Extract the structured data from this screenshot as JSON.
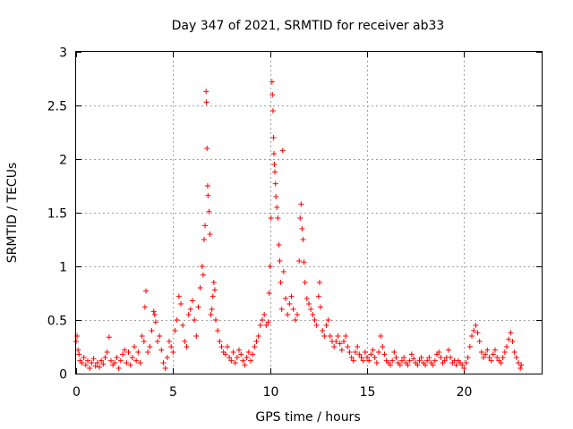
{
  "chart_data": {
    "type": "scatter",
    "title": "Day 347 of 2021, SRMTID for receiver ab33",
    "xlabel": "GPS time / hours",
    "ylabel": "SRMTID / TECUs",
    "xlim": [
      0,
      24
    ],
    "ylim": [
      0,
      3
    ],
    "xticks": [
      0,
      5,
      10,
      15,
      20
    ],
    "yticks": [
      0,
      0.5,
      1,
      1.5,
      2,
      2.5,
      3
    ],
    "xtick_labels": [
      "0",
      "5",
      "10",
      "15",
      "20"
    ],
    "ytick_labels": [
      "0",
      "0.5",
      "1",
      "1.5",
      "2",
      "2.5",
      "3"
    ],
    "grid": true,
    "marker": "plus",
    "series": [
      {
        "name": "SRMTID",
        "color": "#ff0000",
        "points": [
          [
            0.0,
            0.3
          ],
          [
            0.05,
            0.35
          ],
          [
            0.1,
            0.22
          ],
          [
            0.15,
            0.18
          ],
          [
            0.2,
            0.12
          ],
          [
            0.3,
            0.1
          ],
          [
            0.4,
            0.15
          ],
          [
            0.5,
            0.08
          ],
          [
            0.6,
            0.12
          ],
          [
            0.7,
            0.05
          ],
          [
            0.8,
            0.1
          ],
          [
            0.9,
            0.14
          ],
          [
            1.0,
            0.07
          ],
          [
            1.1,
            0.1
          ],
          [
            1.2,
            0.06
          ],
          [
            1.3,
            0.12
          ],
          [
            1.4,
            0.09
          ],
          [
            1.5,
            0.15
          ],
          [
            1.6,
            0.2
          ],
          [
            1.7,
            0.34
          ],
          [
            1.8,
            0.12
          ],
          [
            1.9,
            0.08
          ],
          [
            2.0,
            0.1
          ],
          [
            2.1,
            0.15
          ],
          [
            2.2,
            0.05
          ],
          [
            2.3,
            0.12
          ],
          [
            2.4,
            0.18
          ],
          [
            2.5,
            0.22
          ],
          [
            2.6,
            0.1
          ],
          [
            2.7,
            0.2
          ],
          [
            2.8,
            0.08
          ],
          [
            2.9,
            0.15
          ],
          [
            3.0,
            0.25
          ],
          [
            3.1,
            0.12
          ],
          [
            3.2,
            0.2
          ],
          [
            3.3,
            0.1
          ],
          [
            3.4,
            0.35
          ],
          [
            3.5,
            0.3
          ],
          [
            3.55,
            0.62
          ],
          [
            3.6,
            0.77
          ],
          [
            3.7,
            0.2
          ],
          [
            3.8,
            0.25
          ],
          [
            3.9,
            0.4
          ],
          [
            4.0,
            0.58
          ],
          [
            4.05,
            0.55
          ],
          [
            4.1,
            0.48
          ],
          [
            4.2,
            0.3
          ],
          [
            4.3,
            0.35
          ],
          [
            4.4,
            0.22
          ],
          [
            4.5,
            0.1
          ],
          [
            4.6,
            0.05
          ],
          [
            4.7,
            0.15
          ],
          [
            4.8,
            0.3
          ],
          [
            4.9,
            0.25
          ],
          [
            5.0,
            0.2
          ],
          [
            5.1,
            0.4
          ],
          [
            5.2,
            0.5
          ],
          [
            5.3,
            0.72
          ],
          [
            5.4,
            0.65
          ],
          [
            5.5,
            0.45
          ],
          [
            5.6,
            0.3
          ],
          [
            5.7,
            0.25
          ],
          [
            5.8,
            0.55
          ],
          [
            5.9,
            0.6
          ],
          [
            6.0,
            0.68
          ],
          [
            6.1,
            0.5
          ],
          [
            6.2,
            0.35
          ],
          [
            6.3,
            0.62
          ],
          [
            6.4,
            0.8
          ],
          [
            6.5,
            1.0
          ],
          [
            6.55,
            0.92
          ],
          [
            6.6,
            1.25
          ],
          [
            6.65,
            1.38
          ],
          [
            6.7,
            2.63
          ],
          [
            6.72,
            2.53
          ],
          [
            6.75,
            2.1
          ],
          [
            6.78,
            1.75
          ],
          [
            6.8,
            1.66
          ],
          [
            6.85,
            1.51
          ],
          [
            6.9,
            1.3
          ],
          [
            6.95,
            0.55
          ],
          [
            7.0,
            0.6
          ],
          [
            7.05,
            0.72
          ],
          [
            7.1,
            0.85
          ],
          [
            7.15,
            0.78
          ],
          [
            7.2,
            0.5
          ],
          [
            7.3,
            0.4
          ],
          [
            7.4,
            0.3
          ],
          [
            7.5,
            0.25
          ],
          [
            7.6,
            0.2
          ],
          [
            7.7,
            0.18
          ],
          [
            7.8,
            0.25
          ],
          [
            7.9,
            0.15
          ],
          [
            8.0,
            0.12
          ],
          [
            8.1,
            0.2
          ],
          [
            8.2,
            0.1
          ],
          [
            8.3,
            0.15
          ],
          [
            8.4,
            0.22
          ],
          [
            8.5,
            0.18
          ],
          [
            8.6,
            0.12
          ],
          [
            8.7,
            0.08
          ],
          [
            8.8,
            0.15
          ],
          [
            8.9,
            0.2
          ],
          [
            9.0,
            0.12
          ],
          [
            9.1,
            0.18
          ],
          [
            9.2,
            0.25
          ],
          [
            9.3,
            0.3
          ],
          [
            9.4,
            0.35
          ],
          [
            9.5,
            0.45
          ],
          [
            9.6,
            0.5
          ],
          [
            9.7,
            0.55
          ],
          [
            9.8,
            0.45
          ],
          [
            9.9,
            0.48
          ],
          [
            9.95,
            0.75
          ],
          [
            10.0,
            1.0
          ],
          [
            10.05,
            1.45
          ],
          [
            10.1,
            2.72
          ],
          [
            10.12,
            2.6
          ],
          [
            10.15,
            2.45
          ],
          [
            10.18,
            2.2
          ],
          [
            10.2,
            2.05
          ],
          [
            10.22,
            1.95
          ],
          [
            10.25,
            1.88
          ],
          [
            10.28,
            1.77
          ],
          [
            10.3,
            1.65
          ],
          [
            10.35,
            1.55
          ],
          [
            10.4,
            1.45
          ],
          [
            10.45,
            1.2
          ],
          [
            10.5,
            1.05
          ],
          [
            10.55,
            0.85
          ],
          [
            10.6,
            0.6
          ],
          [
            10.65,
            2.08
          ],
          [
            10.7,
            0.95
          ],
          [
            10.8,
            0.7
          ],
          [
            10.9,
            0.55
          ],
          [
            11.0,
            0.65
          ],
          [
            11.1,
            0.72
          ],
          [
            11.2,
            0.6
          ],
          [
            11.3,
            0.5
          ],
          [
            11.4,
            0.55
          ],
          [
            11.5,
            1.05
          ],
          [
            11.55,
            1.45
          ],
          [
            11.6,
            1.58
          ],
          [
            11.65,
            1.35
          ],
          [
            11.7,
            1.25
          ],
          [
            11.75,
            1.04
          ],
          [
            11.8,
            0.85
          ],
          [
            11.9,
            0.7
          ],
          [
            12.0,
            0.65
          ],
          [
            12.1,
            0.6
          ],
          [
            12.2,
            0.55
          ],
          [
            12.3,
            0.5
          ],
          [
            12.4,
            0.45
          ],
          [
            12.5,
            0.72
          ],
          [
            12.55,
            0.85
          ],
          [
            12.6,
            0.62
          ],
          [
            12.7,
            0.4
          ],
          [
            12.8,
            0.35
          ],
          [
            12.9,
            0.45
          ],
          [
            13.0,
            0.5
          ],
          [
            13.1,
            0.35
          ],
          [
            13.2,
            0.3
          ],
          [
            13.3,
            0.25
          ],
          [
            13.4,
            0.3
          ],
          [
            13.5,
            0.35
          ],
          [
            13.6,
            0.28
          ],
          [
            13.7,
            0.22
          ],
          [
            13.8,
            0.3
          ],
          [
            13.9,
            0.35
          ],
          [
            14.0,
            0.25
          ],
          [
            14.1,
            0.2
          ],
          [
            14.2,
            0.15
          ],
          [
            14.3,
            0.12
          ],
          [
            14.4,
            0.2
          ],
          [
            14.5,
            0.25
          ],
          [
            14.6,
            0.18
          ],
          [
            14.7,
            0.15
          ],
          [
            14.8,
            0.12
          ],
          [
            14.9,
            0.2
          ],
          [
            15.0,
            0.15
          ],
          [
            15.1,
            0.12
          ],
          [
            15.2,
            0.18
          ],
          [
            15.3,
            0.22
          ],
          [
            15.4,
            0.15
          ],
          [
            15.5,
            0.1
          ],
          [
            15.6,
            0.2
          ],
          [
            15.7,
            0.35
          ],
          [
            15.8,
            0.25
          ],
          [
            15.9,
            0.18
          ],
          [
            16.0,
            0.12
          ],
          [
            16.1,
            0.1
          ],
          [
            16.2,
            0.08
          ],
          [
            16.3,
            0.12
          ],
          [
            16.4,
            0.2
          ],
          [
            16.5,
            0.15
          ],
          [
            16.6,
            0.1
          ],
          [
            16.7,
            0.08
          ],
          [
            16.8,
            0.12
          ],
          [
            16.9,
            0.15
          ],
          [
            17.0,
            0.1
          ],
          [
            17.1,
            0.08
          ],
          [
            17.2,
            0.12
          ],
          [
            17.3,
            0.18
          ],
          [
            17.4,
            0.14
          ],
          [
            17.5,
            0.1
          ],
          [
            17.6,
            0.08
          ],
          [
            17.7,
            0.12
          ],
          [
            17.8,
            0.15
          ],
          [
            17.9,
            0.1
          ],
          [
            18.0,
            0.08
          ],
          [
            18.1,
            0.12
          ],
          [
            18.2,
            0.15
          ],
          [
            18.3,
            0.1
          ],
          [
            18.4,
            0.08
          ],
          [
            18.5,
            0.12
          ],
          [
            18.6,
            0.18
          ],
          [
            18.7,
            0.2
          ],
          [
            18.8,
            0.15
          ],
          [
            18.9,
            0.1
          ],
          [
            19.0,
            0.12
          ],
          [
            19.1,
            0.15
          ],
          [
            19.2,
            0.22
          ],
          [
            19.3,
            0.15
          ],
          [
            19.4,
            0.1
          ],
          [
            19.5,
            0.12
          ],
          [
            19.6,
            0.08
          ],
          [
            19.7,
            0.12
          ],
          [
            19.8,
            0.1
          ],
          [
            19.9,
            0.08
          ],
          [
            20.0,
            0.05
          ],
          [
            20.1,
            0.1
          ],
          [
            20.2,
            0.15
          ],
          [
            20.3,
            0.25
          ],
          [
            20.4,
            0.35
          ],
          [
            20.5,
            0.4
          ],
          [
            20.6,
            0.45
          ],
          [
            20.7,
            0.38
          ],
          [
            20.8,
            0.3
          ],
          [
            20.9,
            0.2
          ],
          [
            21.0,
            0.15
          ],
          [
            21.1,
            0.18
          ],
          [
            21.2,
            0.22
          ],
          [
            21.3,
            0.15
          ],
          [
            21.4,
            0.12
          ],
          [
            21.5,
            0.18
          ],
          [
            21.6,
            0.22
          ],
          [
            21.7,
            0.15
          ],
          [
            21.8,
            0.12
          ],
          [
            21.9,
            0.1
          ],
          [
            22.0,
            0.15
          ],
          [
            22.1,
            0.2
          ],
          [
            22.2,
            0.25
          ],
          [
            22.3,
            0.32
          ],
          [
            22.4,
            0.38
          ],
          [
            22.5,
            0.3
          ],
          [
            22.6,
            0.2
          ],
          [
            22.7,
            0.15
          ],
          [
            22.8,
            0.1
          ],
          [
            22.9,
            0.05
          ],
          [
            22.95,
            0.08
          ]
        ]
      }
    ]
  }
}
